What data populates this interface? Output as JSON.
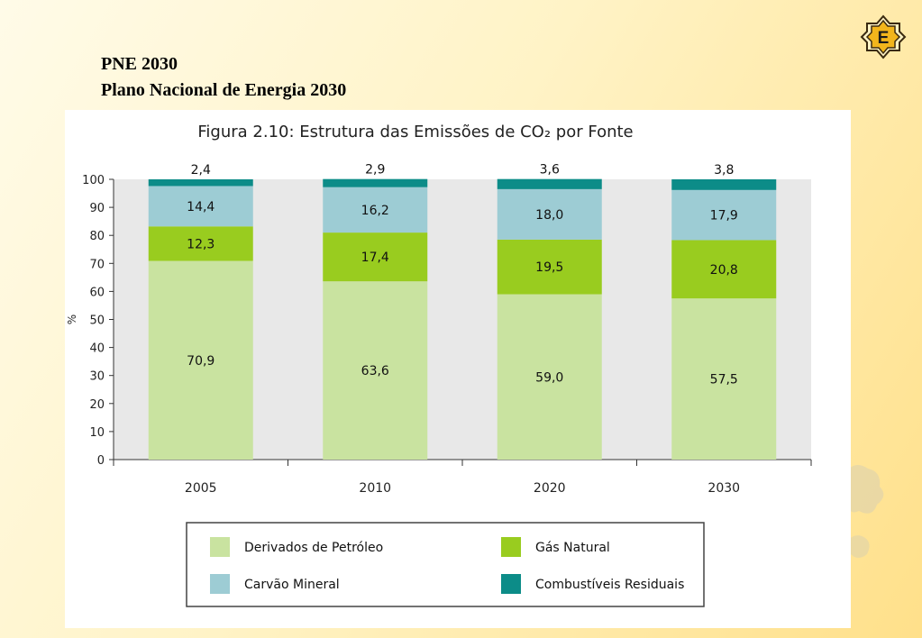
{
  "slide": {
    "title_line1": "PNE 2030",
    "title_line2": "Plano Nacional de Energia 2030",
    "logo_letter": "E"
  },
  "colors": {
    "derivados": "#c9e3a0",
    "gas": "#99cc1f",
    "carvao": "#9dccd4",
    "combustiveis": "#0c8c88",
    "bar_bg": "#e8e8e8",
    "logo_gold": "#f2b51c"
  },
  "chart_data": {
    "type": "bar",
    "stacked": true,
    "title": "Figura 2.10: Estrutura das Emissões de CO₂ por Fonte",
    "ylabel": "%",
    "xlabel": "",
    "ylim": [
      0,
      100
    ],
    "yticks": [
      0,
      10,
      20,
      30,
      40,
      50,
      60,
      70,
      80,
      90,
      100
    ],
    "categories": [
      "2005",
      "2010",
      "2020",
      "2030"
    ],
    "series": [
      {
        "name": "Derivados de Petróleo",
        "color": "#c9e3a0",
        "values": [
          70.9,
          63.6,
          59.0,
          57.5
        ],
        "labels": [
          "70,9",
          "63,6",
          "59,0",
          "57,5"
        ]
      },
      {
        "name": "Gás Natural",
        "color": "#99cc1f",
        "values": [
          12.3,
          17.4,
          19.5,
          20.8
        ],
        "labels": [
          "12,3",
          "17,4",
          "19,5",
          "20,8"
        ]
      },
      {
        "name": "Carvão Mineral",
        "color": "#9dccd4",
        "values": [
          14.4,
          16.2,
          18.0,
          17.9
        ],
        "labels": [
          "14,4",
          "16,2",
          "18,0",
          "17,9"
        ]
      },
      {
        "name": "Combustíveis Residuais",
        "color": "#0c8c88",
        "values": [
          2.4,
          2.9,
          3.6,
          3.8
        ],
        "labels": [
          "2,4",
          "2,9",
          "3,6",
          "3,8"
        ]
      }
    ],
    "legend": {
      "placement": "bottom",
      "order": [
        "Derivados de Petróleo",
        "Gás Natural",
        "Carvão Mineral",
        "Combustíveis Residuais"
      ]
    },
    "grid": false
  }
}
